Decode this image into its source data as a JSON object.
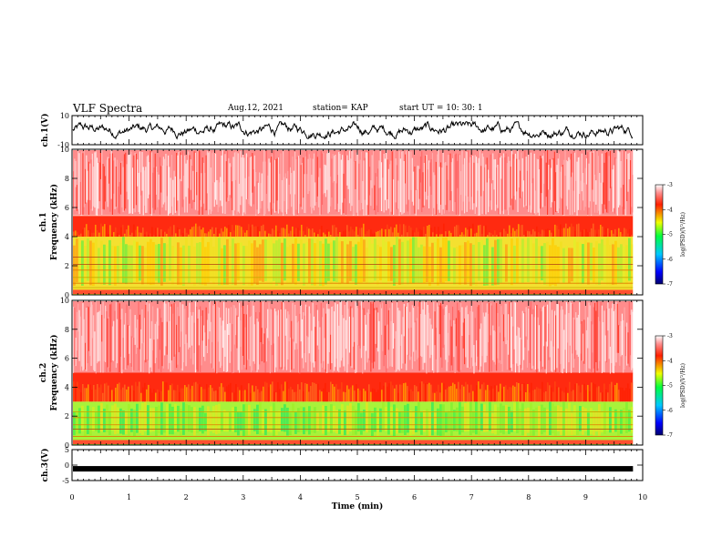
{
  "header": {
    "title": "VLF Spectra",
    "date": "Aug.12, 2021",
    "station": "station= KAP",
    "start": "start UT =   10: 30: 1"
  },
  "chart_data": [
    {
      "type": "line",
      "id": "ch1-waveform",
      "ylabel": "ch.1(V)",
      "ylim": [
        -10,
        10
      ],
      "yticks": [
        "10",
        "-10"
      ],
      "xlim": [
        0,
        10
      ],
      "series": [
        {
          "values": [
            0,
            2.5,
            -2.5,
            1.8,
            -3.0
          ]
        }
      ]
    },
    {
      "type": "heatmap",
      "id": "ch1-spectrogram",
      "ylabel": "ch.1\nFrequency (kHz)",
      "ylim": [
        0,
        10
      ],
      "yticks": [
        "0",
        "2",
        "4",
        "6",
        "8",
        "10"
      ],
      "xlim": [
        0,
        10
      ],
      "colorbar": {
        "label": "log(PSD)(V²/Hz)",
        "range": [
          -7,
          -3
        ],
        "ticks": [
          "-3",
          "-4",
          "-5",
          "-6",
          "-7"
        ]
      },
      "bands": [
        {
          "from_khz": 5.5,
          "to_khz": 10,
          "level": "noisy red/white"
        },
        {
          "from_khz": 4.0,
          "to_khz": 5.5,
          "level": "red"
        },
        {
          "from_khz": 0.5,
          "to_khz": 4.0,
          "level": "yellow with green patches"
        }
      ]
    },
    {
      "type": "heatmap",
      "id": "ch2-spectrogram",
      "ylabel": "ch.2\nFrequency (kHz)",
      "ylim": [
        0,
        10
      ],
      "yticks": [
        "0",
        "2",
        "4",
        "6",
        "8",
        "10"
      ],
      "xlim": [
        0,
        10
      ],
      "colorbar": {
        "label": "log(PSD)(V²/Hz)",
        "range": [
          -7,
          -3
        ],
        "ticks": [
          "-3",
          "-4",
          "-5",
          "-6",
          "-7"
        ]
      },
      "bands": [
        {
          "from_khz": 5.0,
          "to_khz": 10,
          "level": "noisy red/white"
        },
        {
          "from_khz": 3.0,
          "to_khz": 5.0,
          "level": "red"
        },
        {
          "from_khz": 0.5,
          "to_khz": 3.0,
          "level": "green with yellow"
        }
      ]
    },
    {
      "type": "line",
      "id": "ch3-waveform",
      "ylabel": "ch.3(V)",
      "ylim": [
        -5,
        5
      ],
      "yticks": [
        "5",
        "0",
        "-5"
      ],
      "xlim": [
        0,
        10
      ],
      "series": [
        {
          "values": [
            -1.2,
            -1.2
          ]
        }
      ]
    }
  ],
  "xaxis": {
    "label": "Time (min)",
    "ticks": [
      "0",
      "1",
      "2",
      "3",
      "4",
      "5",
      "6",
      "7",
      "8",
      "9",
      "10"
    ],
    "data_end_min": 9.83
  }
}
